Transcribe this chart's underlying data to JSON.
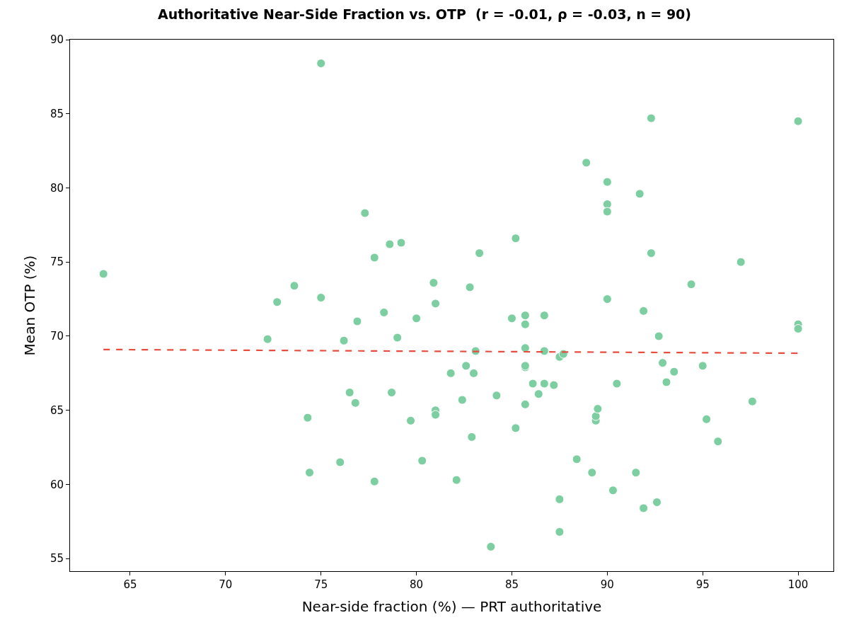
{
  "chart_data": {
    "type": "scatter",
    "title": "Authoritative Near-Side Fraction vs. OTP  (r = -0.01, ρ = -0.03, n = 90)",
    "xlabel": "Near-side fraction (%) — PRT authoritative",
    "ylabel": "Mean OTP (%)",
    "xlim": [
      61.85,
      101.85
    ],
    "xticks": [
      65,
      70,
      75,
      80,
      85,
      90,
      95,
      100
    ],
    "ylim": [
      54.15,
      90
    ],
    "yticks": [
      55,
      60,
      65,
      70,
      75,
      80,
      85,
      90
    ],
    "marker": "circle",
    "series": [
      {
        "color": "#7dcea0",
        "x": [
          63.6,
          72.2,
          72.7,
          73.6,
          74.3,
          74.4,
          75.0,
          75.0,
          76.0,
          76.2,
          76.5,
          76.8,
          76.9,
          77.3,
          77.8,
          77.8,
          78.3,
          78.6,
          78.7,
          79.0,
          79.2,
          79.7,
          80.0,
          80.3,
          80.9,
          81.0,
          81.0,
          81.0,
          81.8,
          82.1,
          82.4,
          82.6,
          82.8,
          82.9,
          83.0,
          83.1,
          83.3,
          83.9,
          84.2,
          85.0,
          85.2,
          85.2,
          85.7,
          85.7,
          85.7,
          85.7,
          85.7,
          85.7,
          86.1,
          86.4,
          86.7,
          86.7,
          86.7,
          87.2,
          87.5,
          87.7,
          87.5,
          87.5,
          88.4,
          88.9,
          89.2,
          89.4,
          89.4,
          89.5,
          90.0,
          90.0,
          90.0,
          90.0,
          90.3,
          90.5,
          91.5,
          91.7,
          91.9,
          91.9,
          92.3,
          92.3,
          92.6,
          92.7,
          92.9,
          93.1,
          93.5,
          94.4,
          95.0,
          95.2,
          95.8,
          97.0,
          97.6,
          100.0,
          100.0,
          100.0
        ],
        "values": [
          74.2,
          69.8,
          72.3,
          73.4,
          64.5,
          60.8,
          88.4,
          72.6,
          61.5,
          69.7,
          66.2,
          65.5,
          71.0,
          78.3,
          75.3,
          60.2,
          71.6,
          76.2,
          66.2,
          69.9,
          76.3,
          64.3,
          71.2,
          61.6,
          73.6,
          72.2,
          65.0,
          64.7,
          67.5,
          60.3,
          65.7,
          68.0,
          73.3,
          63.2,
          67.5,
          69.0,
          75.6,
          55.8,
          66.0,
          71.2,
          76.6,
          63.8,
          71.4,
          70.8,
          69.2,
          67.9,
          68.0,
          65.4,
          66.8,
          66.1,
          71.4,
          69.0,
          66.8,
          66.7,
          68.6,
          68.8,
          59.0,
          56.8,
          61.7,
          81.7,
          60.8,
          64.3,
          64.6,
          65.1,
          80.4,
          78.9,
          78.4,
          72.5,
          59.6,
          66.8,
          60.8,
          79.6,
          71.7,
          58.4,
          84.7,
          75.6,
          58.8,
          70.0,
          68.2,
          66.9,
          67.6,
          73.5,
          68.0,
          64.4,
          62.9,
          75.0,
          65.6,
          84.5,
          70.8,
          70.5
        ]
      },
      {
        "type": "line",
        "color": "#e74c3c",
        "line_style": "dashed",
        "marker": "none",
        "x": [
          63.6,
          100.0
        ],
        "values": [
          69.1,
          68.85
        ]
      }
    ]
  }
}
